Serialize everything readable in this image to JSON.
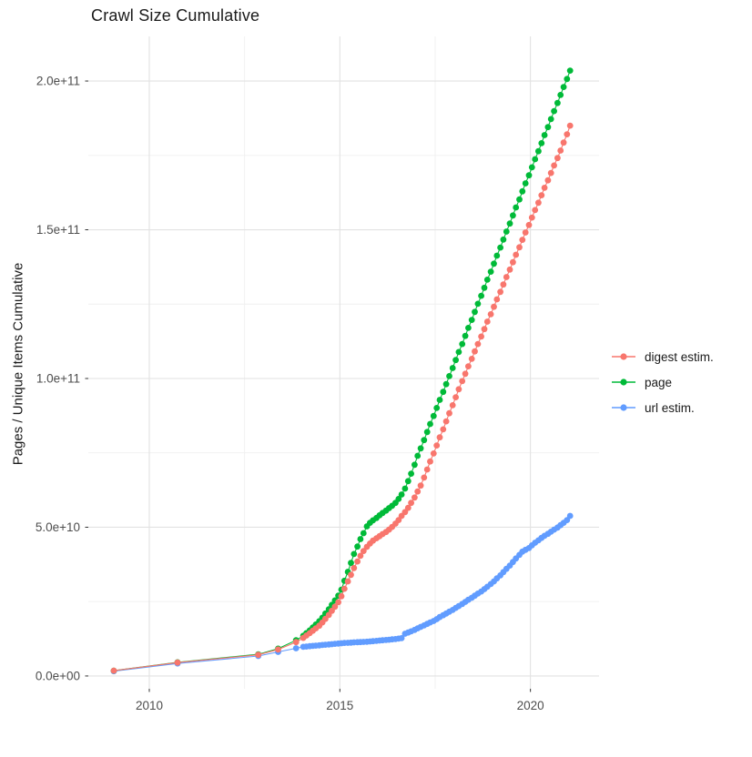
{
  "chart_data": {
    "type": "scatter",
    "title": "Crawl Size Cumulative",
    "ylabel": "Pages / Unique Items Cumulative",
    "xlabel": "",
    "grid": true,
    "legend_position": "right",
    "value_unit": "1e9 pages (billions)",
    "xlim": [
      2008.4,
      2021.8
    ],
    "ylim_e9": [
      -4.3,
      215
    ],
    "x_ticks": [
      {
        "value": 2010,
        "label": "2010"
      },
      {
        "value": 2015,
        "label": "2015"
      },
      {
        "value": 2020,
        "label": "2020"
      }
    ],
    "x_minor": [
      2012.5,
      2017.5
    ],
    "y_ticks": [
      {
        "value": 0,
        "label": "0.0e+00"
      },
      {
        "value": 50,
        "label": "5.0e+10"
      },
      {
        "value": 100,
        "label": "1.0e+11"
      },
      {
        "value": 150,
        "label": "1.5e+11"
      },
      {
        "value": 200,
        "label": "2.0e+11"
      }
    ],
    "y_minor": [
      25,
      75,
      125,
      175
    ],
    "colors": {
      "grid_major": "#e2e2e2",
      "grid_minor": "#f0f0f0",
      "tick_mark": "#333333",
      "tick_label": "#4d4d4d"
    },
    "draw_order": [
      "url estim.",
      "page",
      "digest estim."
    ],
    "series": [
      {
        "name": "digest estim.",
        "color": "#F8766D",
        "points": [
          [
            2009.07,
            1.8
          ],
          [
            2010.74,
            4.5
          ],
          [
            2012.86,
            7.1
          ],
          [
            2013.38,
            8.9
          ],
          [
            2013.85,
            11.4
          ],
          [
            2014.04,
            12.8
          ],
          [
            2014.12,
            13.6
          ],
          [
            2014.21,
            14.4
          ],
          [
            2014.29,
            15.2
          ],
          [
            2014.37,
            16.0
          ],
          [
            2014.46,
            16.9
          ],
          [
            2014.54,
            18.0
          ],
          [
            2014.62,
            19.2
          ],
          [
            2014.71,
            20.5
          ],
          [
            2014.79,
            21.9
          ],
          [
            2014.87,
            23.3
          ],
          [
            2014.96,
            24.8
          ],
          [
            2015.04,
            26.8
          ],
          [
            2015.12,
            29.3
          ],
          [
            2015.21,
            31.8
          ],
          [
            2015.29,
            34.0
          ],
          [
            2015.37,
            36.3
          ],
          [
            2015.46,
            38.5
          ],
          [
            2015.54,
            40.4
          ],
          [
            2015.62,
            42.0
          ],
          [
            2015.71,
            43.4
          ],
          [
            2015.79,
            44.5
          ],
          [
            2015.87,
            45.5
          ],
          [
            2015.96,
            46.3
          ],
          [
            2016.04,
            47.0
          ],
          [
            2016.12,
            47.7
          ],
          [
            2016.21,
            48.4
          ],
          [
            2016.29,
            49.2
          ],
          [
            2016.37,
            50.1
          ],
          [
            2016.46,
            51.2
          ],
          [
            2016.54,
            52.4
          ],
          [
            2016.62,
            53.8
          ],
          [
            2016.71,
            55.1
          ],
          [
            2016.79,
            56.5
          ],
          [
            2016.87,
            58.2
          ],
          [
            2016.96,
            60.0
          ],
          [
            2017.04,
            62.0
          ],
          [
            2017.12,
            64.0
          ],
          [
            2017.21,
            66.7
          ],
          [
            2017.29,
            69.4
          ],
          [
            2017.37,
            72.1
          ],
          [
            2017.46,
            74.8
          ],
          [
            2017.54,
            77.5
          ],
          [
            2017.62,
            80.2
          ],
          [
            2017.71,
            82.9
          ],
          [
            2017.79,
            85.6
          ],
          [
            2017.87,
            88.3
          ],
          [
            2017.96,
            91.0
          ],
          [
            2018.04,
            93.7
          ],
          [
            2018.12,
            96.4
          ],
          [
            2018.21,
            99.1
          ],
          [
            2018.29,
            101.6
          ],
          [
            2018.37,
            104.1
          ],
          [
            2018.46,
            106.6
          ],
          [
            2018.54,
            109.1
          ],
          [
            2018.62,
            111.6
          ],
          [
            2018.71,
            114.1
          ],
          [
            2018.79,
            116.6
          ],
          [
            2018.87,
            119.1
          ],
          [
            2018.96,
            121.6
          ],
          [
            2019.04,
            124.1
          ],
          [
            2019.12,
            126.6
          ],
          [
            2019.21,
            129.1
          ],
          [
            2019.29,
            131.6
          ],
          [
            2019.37,
            134.1
          ],
          [
            2019.46,
            136.6
          ],
          [
            2019.54,
            139.1
          ],
          [
            2019.62,
            141.6
          ],
          [
            2019.71,
            144.1
          ],
          [
            2019.79,
            146.6
          ],
          [
            2019.87,
            149.1
          ],
          [
            2019.96,
            151.6
          ],
          [
            2020.04,
            154.1
          ],
          [
            2020.12,
            156.6
          ],
          [
            2020.21,
            159.1
          ],
          [
            2020.29,
            161.6
          ],
          [
            2020.37,
            164.1
          ],
          [
            2020.46,
            166.6
          ],
          [
            2020.54,
            169.1
          ],
          [
            2020.62,
            171.6
          ],
          [
            2020.71,
            174.1
          ],
          [
            2020.79,
            176.6
          ],
          [
            2020.87,
            179.3
          ],
          [
            2020.96,
            182.1
          ],
          [
            2021.04,
            185.0
          ]
        ]
      },
      {
        "name": "page",
        "color": "#00BA38",
        "points": [
          [
            2009.07,
            1.8
          ],
          [
            2010.74,
            4.6
          ],
          [
            2012.86,
            7.3
          ],
          [
            2013.38,
            9.2
          ],
          [
            2013.85,
            12.0
          ],
          [
            2014.04,
            13.5
          ],
          [
            2014.12,
            14.4
          ],
          [
            2014.21,
            15.3
          ],
          [
            2014.29,
            16.3
          ],
          [
            2014.37,
            17.3
          ],
          [
            2014.46,
            18.4
          ],
          [
            2014.54,
            19.6
          ],
          [
            2014.62,
            21.0
          ],
          [
            2014.71,
            22.4
          ],
          [
            2014.79,
            23.9
          ],
          [
            2014.87,
            25.4
          ],
          [
            2014.96,
            27.0
          ],
          [
            2015.04,
            29.0
          ],
          [
            2015.12,
            32.0
          ],
          [
            2015.21,
            35.0
          ],
          [
            2015.29,
            38.0
          ],
          [
            2015.37,
            41.0
          ],
          [
            2015.46,
            43.5
          ],
          [
            2015.54,
            46.0
          ],
          [
            2015.62,
            48.0
          ],
          [
            2015.71,
            50.3
          ],
          [
            2015.79,
            51.5
          ],
          [
            2015.87,
            52.3
          ],
          [
            2015.96,
            53.1
          ],
          [
            2016.04,
            54.0
          ],
          [
            2016.12,
            54.8
          ],
          [
            2016.21,
            55.6
          ],
          [
            2016.29,
            56.4
          ],
          [
            2016.37,
            57.2
          ],
          [
            2016.46,
            58.2
          ],
          [
            2016.54,
            59.5
          ],
          [
            2016.62,
            61.0
          ],
          [
            2016.71,
            63.0
          ],
          [
            2016.79,
            65.5
          ],
          [
            2016.87,
            68.0
          ],
          [
            2016.96,
            71.0
          ],
          [
            2017.04,
            74.0
          ],
          [
            2017.12,
            76.5
          ],
          [
            2017.21,
            79.3
          ],
          [
            2017.29,
            82.0
          ],
          [
            2017.37,
            84.7
          ],
          [
            2017.46,
            87.4
          ],
          [
            2017.54,
            90.1
          ],
          [
            2017.62,
            92.8
          ],
          [
            2017.71,
            95.5
          ],
          [
            2017.79,
            98.1
          ],
          [
            2017.87,
            100.8
          ],
          [
            2017.96,
            103.5
          ],
          [
            2018.04,
            106.2
          ],
          [
            2018.12,
            108.9
          ],
          [
            2018.21,
            111.6
          ],
          [
            2018.29,
            114.3
          ],
          [
            2018.37,
            117.0
          ],
          [
            2018.46,
            119.7
          ],
          [
            2018.54,
            122.4
          ],
          [
            2018.62,
            125.1
          ],
          [
            2018.71,
            127.8
          ],
          [
            2018.79,
            130.5
          ],
          [
            2018.87,
            133.2
          ],
          [
            2018.96,
            135.9
          ],
          [
            2019.04,
            138.6
          ],
          [
            2019.12,
            141.3
          ],
          [
            2019.21,
            144.0
          ],
          [
            2019.29,
            146.7
          ],
          [
            2019.37,
            149.4
          ],
          [
            2019.46,
            152.1
          ],
          [
            2019.54,
            154.8
          ],
          [
            2019.62,
            157.5
          ],
          [
            2019.71,
            160.2
          ],
          [
            2019.79,
            162.9
          ],
          [
            2019.87,
            165.6
          ],
          [
            2019.96,
            168.3
          ],
          [
            2020.04,
            171.0
          ],
          [
            2020.12,
            173.7
          ],
          [
            2020.21,
            176.4
          ],
          [
            2020.29,
            179.1
          ],
          [
            2020.37,
            181.8
          ],
          [
            2020.46,
            184.5
          ],
          [
            2020.54,
            187.2
          ],
          [
            2020.62,
            189.9
          ],
          [
            2020.71,
            192.6
          ],
          [
            2020.79,
            195.3
          ],
          [
            2020.87,
            198.0
          ],
          [
            2020.96,
            200.7
          ],
          [
            2021.04,
            203.5
          ]
        ]
      },
      {
        "name": "url estim.",
        "color": "#619CFF",
        "points": [
          [
            2009.07,
            1.6
          ],
          [
            2010.74,
            4.2
          ],
          [
            2012.86,
            6.7
          ],
          [
            2013.38,
            8.1
          ],
          [
            2013.85,
            9.3
          ],
          [
            2014.04,
            9.8
          ],
          [
            2014.12,
            9.9
          ],
          [
            2014.21,
            10.0
          ],
          [
            2014.29,
            10.1
          ],
          [
            2014.37,
            10.2
          ],
          [
            2014.46,
            10.3
          ],
          [
            2014.54,
            10.4
          ],
          [
            2014.62,
            10.5
          ],
          [
            2014.71,
            10.6
          ],
          [
            2014.79,
            10.7
          ],
          [
            2014.87,
            10.8
          ],
          [
            2014.96,
            10.9
          ],
          [
            2015.04,
            11.0
          ],
          [
            2015.12,
            11.1
          ],
          [
            2015.21,
            11.15
          ],
          [
            2015.29,
            11.2
          ],
          [
            2015.37,
            11.3
          ],
          [
            2015.46,
            11.35
          ],
          [
            2015.54,
            11.4
          ],
          [
            2015.62,
            11.45
          ],
          [
            2015.71,
            11.5
          ],
          [
            2015.79,
            11.6
          ],
          [
            2015.87,
            11.7
          ],
          [
            2015.96,
            11.8
          ],
          [
            2016.04,
            11.9
          ],
          [
            2016.12,
            12.0
          ],
          [
            2016.21,
            12.1
          ],
          [
            2016.29,
            12.2
          ],
          [
            2016.37,
            12.3
          ],
          [
            2016.46,
            12.4
          ],
          [
            2016.54,
            12.55
          ],
          [
            2016.62,
            12.7
          ],
          [
            2016.71,
            14.2
          ],
          [
            2016.79,
            14.6
          ],
          [
            2016.87,
            15.0
          ],
          [
            2016.96,
            15.5
          ],
          [
            2017.04,
            16.0
          ],
          [
            2017.12,
            16.5
          ],
          [
            2017.21,
            17.0
          ],
          [
            2017.29,
            17.5
          ],
          [
            2017.37,
            18.0
          ],
          [
            2017.46,
            18.5
          ],
          [
            2017.54,
            19.1
          ],
          [
            2017.62,
            19.8
          ],
          [
            2017.71,
            20.4
          ],
          [
            2017.79,
            21.0
          ],
          [
            2017.87,
            21.6
          ],
          [
            2017.96,
            22.2
          ],
          [
            2018.04,
            22.9
          ],
          [
            2018.12,
            23.5
          ],
          [
            2018.21,
            24.2
          ],
          [
            2018.29,
            24.9
          ],
          [
            2018.37,
            25.6
          ],
          [
            2018.46,
            26.3
          ],
          [
            2018.54,
            27.0
          ],
          [
            2018.62,
            27.7
          ],
          [
            2018.71,
            28.4
          ],
          [
            2018.79,
            29.2
          ],
          [
            2018.87,
            30.0
          ],
          [
            2018.96,
            30.9
          ],
          [
            2019.04,
            31.8
          ],
          [
            2019.12,
            32.8
          ],
          [
            2019.21,
            33.8
          ],
          [
            2019.29,
            34.9
          ],
          [
            2019.37,
            36.0
          ],
          [
            2019.46,
            37.1
          ],
          [
            2019.54,
            38.3
          ],
          [
            2019.62,
            39.5
          ],
          [
            2019.71,
            40.7
          ],
          [
            2019.79,
            41.8
          ],
          [
            2019.87,
            42.4
          ],
          [
            2019.96,
            43.0
          ],
          [
            2020.04,
            43.9
          ],
          [
            2020.12,
            44.8
          ],
          [
            2020.21,
            45.6
          ],
          [
            2020.29,
            46.4
          ],
          [
            2020.37,
            47.1
          ],
          [
            2020.46,
            47.8
          ],
          [
            2020.54,
            48.5
          ],
          [
            2020.62,
            49.2
          ],
          [
            2020.71,
            49.9
          ],
          [
            2020.79,
            50.7
          ],
          [
            2020.87,
            51.5
          ],
          [
            2020.96,
            52.4
          ],
          [
            2021.04,
            53.8
          ]
        ]
      }
    ]
  }
}
